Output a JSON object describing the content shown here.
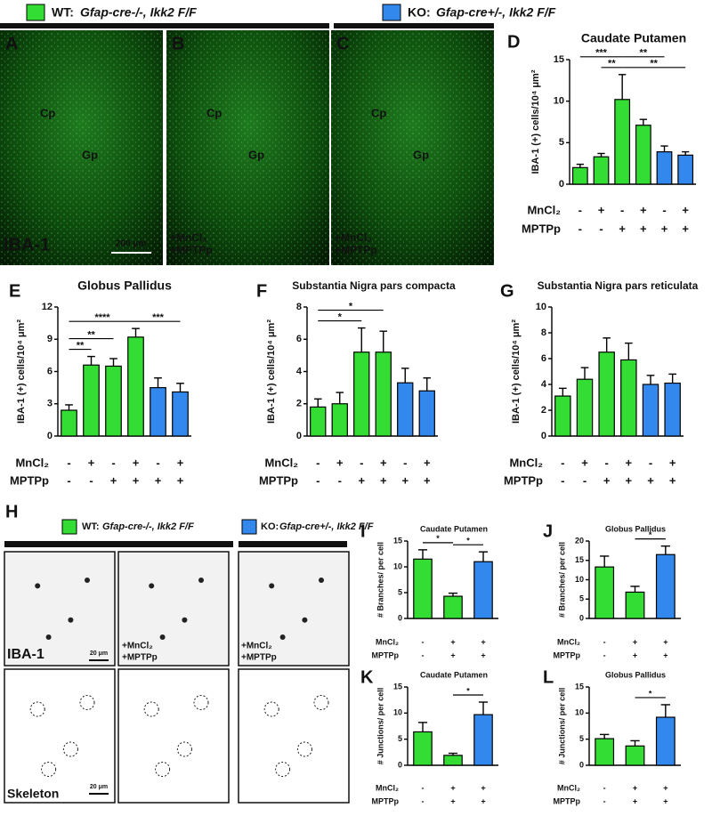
{
  "legend_top": {
    "wt": "WT:",
    "wt_genotype": "Gfap-cre-/-, Ikk2 F/F",
    "ko": "KO:",
    "ko_genotype": "Gfap-cre+/-, Ikk2 F/F"
  },
  "panels": {
    "A": {
      "letter": "A",
      "regions": [
        "Cp",
        "Gp"
      ],
      "stain": "IBA-1",
      "scale": "200 μm"
    },
    "B": {
      "letter": "B",
      "regions": [
        "Cp",
        "Gp"
      ],
      "treatment": [
        "+MnCl₂",
        "+MPTPp"
      ]
    },
    "C": {
      "letter": "C",
      "regions": [
        "Cp",
        "Gp"
      ],
      "treatment": [
        "+MnCl₂",
        "+MPTPp"
      ]
    },
    "H": {
      "letter": "H",
      "wt": "WT:",
      "wt_genotype": "Gfap-cre-/-, Ikk2 F/F",
      "ko": "KO:",
      "ko_genotype": "Gfap-cre+/-, Ikk2 F/F",
      "stain": "IBA-1",
      "scale": "20 μm",
      "treatment_wt": [
        "+MnCl₂",
        "+MPTPp"
      ],
      "treatment_ko": [
        "+MnCl₂",
        "+MPTPp"
      ],
      "skeleton": "Skeleton",
      "skeleton_scale": "20 μm"
    }
  },
  "chart_data": [
    {
      "type": "bar",
      "letter": "D",
      "title": "Caudate Putamen",
      "y_label": "IBA-1 (+) cells/10⁴ μm²",
      "values": [
        2.0,
        3.3,
        10.2,
        7.1,
        3.9,
        3.5
      ],
      "errors": [
        0.4,
        0.4,
        3.0,
        0.7,
        0.7,
        0.4
      ],
      "colors": [
        "#33dd33",
        "#33dd33",
        "#33dd33",
        "#33dd33",
        "#3388ee",
        "#3388ee"
      ],
      "ylim": [
        0,
        15
      ],
      "yticks": [
        0,
        5,
        10,
        15
      ],
      "treatment_labels": [
        "MnCl₂",
        "MPTPp"
      ],
      "treatments": [
        [
          "-",
          "+",
          "-",
          "+",
          "-",
          "+"
        ],
        [
          "-",
          "-",
          "+",
          "+",
          "+",
          "+"
        ]
      ],
      "significance": [
        {
          "between": [
            1,
            2
          ],
          "label": "**"
        },
        {
          "between": [
            2,
            5
          ],
          "label": "**"
        },
        {
          "between": [
            0,
            2
          ],
          "label": "***"
        },
        {
          "between": [
            2,
            4
          ],
          "label": "**"
        }
      ]
    },
    {
      "type": "bar",
      "letter": "E",
      "title": "Globus Pallidus",
      "y_label": "IBA-1 (+) cells/10⁴ μm²",
      "values": [
        2.4,
        6.6,
        6.5,
        9.2,
        4.5,
        4.1
      ],
      "errors": [
        0.5,
        0.8,
        0.7,
        0.8,
        0.9,
        0.8
      ],
      "colors": [
        "#33dd33",
        "#33dd33",
        "#33dd33",
        "#33dd33",
        "#3388ee",
        "#3388ee"
      ],
      "ylim": [
        0,
        12
      ],
      "yticks": [
        0,
        3,
        6,
        9,
        12
      ],
      "treatment_labels": [
        "MnCl₂",
        "MPTPp"
      ],
      "treatments": [
        [
          "-",
          "+",
          "-",
          "+",
          "-",
          "+"
        ],
        [
          "-",
          "-",
          "+",
          "+",
          "+",
          "+"
        ]
      ],
      "significance": [
        {
          "between": [
            0,
            1
          ],
          "label": "**"
        },
        {
          "between": [
            0,
            2
          ],
          "label": "**"
        },
        {
          "between": [
            3,
            5
          ],
          "label": "***"
        },
        {
          "between": [
            0,
            3
          ],
          "label": "****"
        }
      ]
    },
    {
      "type": "bar",
      "letter": "F",
      "title": "Substantia Nigra pars compacta",
      "y_label": "IBA-1 (+) cells/10⁴ μm²",
      "values": [
        1.8,
        2.0,
        5.2,
        5.2,
        3.3,
        2.8
      ],
      "errors": [
        0.5,
        0.7,
        1.5,
        1.3,
        0.9,
        0.8
      ],
      "colors": [
        "#33dd33",
        "#33dd33",
        "#33dd33",
        "#33dd33",
        "#3388ee",
        "#3388ee"
      ],
      "ylim": [
        0,
        8
      ],
      "yticks": [
        0,
        2,
        4,
        6,
        8
      ],
      "treatment_labels": [
        "MnCl₂",
        "MPTPp"
      ],
      "treatments": [
        [
          "-",
          "+",
          "-",
          "+",
          "-",
          "+"
        ],
        [
          "-",
          "-",
          "+",
          "+",
          "+",
          "+"
        ]
      ],
      "significance": [
        {
          "between": [
            0,
            2
          ],
          "label": "*"
        },
        {
          "between": [
            0,
            3
          ],
          "label": "*"
        }
      ]
    },
    {
      "type": "bar",
      "letter": "G",
      "title": "Substantia Nigra pars reticulata",
      "y_label": "IBA-1 (+) cells/10⁴ μm²",
      "values": [
        3.1,
        4.4,
        6.5,
        5.9,
        4.0,
        4.1
      ],
      "errors": [
        0.6,
        0.9,
        1.1,
        1.3,
        0.7,
        0.7
      ],
      "colors": [
        "#33dd33",
        "#33dd33",
        "#33dd33",
        "#33dd33",
        "#3388ee",
        "#3388ee"
      ],
      "ylim": [
        0,
        10
      ],
      "yticks": [
        0,
        2,
        4,
        6,
        8,
        10
      ],
      "treatment_labels": [
        "MnCl₂",
        "MPTPp"
      ],
      "treatments": [
        [
          "-",
          "+",
          "-",
          "+",
          "-",
          "+"
        ],
        [
          "-",
          "-",
          "+",
          "+",
          "+",
          "+"
        ]
      ],
      "significance": []
    },
    {
      "type": "bar",
      "letter": "I",
      "title": "Caudate Putamen",
      "y_label": "# Branches/ per cell",
      "values": [
        11.5,
        4.3,
        11.0
      ],
      "errors": [
        1.8,
        0.6,
        1.9
      ],
      "colors": [
        "#33dd33",
        "#33dd33",
        "#3388ee"
      ],
      "ylim": [
        0,
        15
      ],
      "yticks": [
        0,
        5,
        10,
        15
      ],
      "treatment_labels": [
        "MnCl₂",
        "MPTPp"
      ],
      "treatments": [
        [
          "-",
          "+",
          "+"
        ],
        [
          "-",
          "+",
          "+"
        ]
      ],
      "significance": [
        {
          "between": [
            0,
            1
          ],
          "label": "*"
        },
        {
          "between": [
            1,
            2
          ],
          "label": "*"
        }
      ]
    },
    {
      "type": "bar",
      "letter": "J",
      "title": "Globus Pallidus",
      "y_label": "# Branches/ per cell",
      "values": [
        13.3,
        6.8,
        16.5
      ],
      "errors": [
        2.8,
        1.5,
        2.2
      ],
      "colors": [
        "#33dd33",
        "#33dd33",
        "#3388ee"
      ],
      "ylim": [
        0,
        20
      ],
      "yticks": [
        0,
        5,
        10,
        15,
        20
      ],
      "treatment_labels": [
        "MnCl₂",
        "MPTPp"
      ],
      "treatments": [
        [
          "-",
          "+",
          "+"
        ],
        [
          "-",
          "+",
          "+"
        ]
      ],
      "significance": [
        {
          "between": [
            1,
            2
          ],
          "label": "*"
        }
      ]
    },
    {
      "type": "bar",
      "letter": "K",
      "title": "Caudate Putamen",
      "y_label": "# Junctions/ per cell",
      "values": [
        6.4,
        1.9,
        9.7
      ],
      "errors": [
        1.8,
        0.4,
        2.4
      ],
      "colors": [
        "#33dd33",
        "#33dd33",
        "#3388ee"
      ],
      "ylim": [
        0,
        15
      ],
      "yticks": [
        0,
        5,
        10,
        15
      ],
      "treatment_labels": [
        "MnCl₂",
        "MPTPp"
      ],
      "treatments": [
        [
          "-",
          "+",
          "+"
        ],
        [
          "-",
          "+",
          "+"
        ]
      ],
      "significance": [
        {
          "between": [
            1,
            2
          ],
          "label": "*"
        }
      ]
    },
    {
      "type": "bar",
      "letter": "L",
      "title": "Globus Pallidus",
      "y_label": "# Junctions/ per cell",
      "values": [
        5.1,
        3.7,
        9.2
      ],
      "errors": [
        0.8,
        1.0,
        2.4
      ],
      "colors": [
        "#33dd33",
        "#33dd33",
        "#3388ee"
      ],
      "ylim": [
        0,
        15
      ],
      "yticks": [
        0,
        5,
        10,
        15
      ],
      "treatment_labels": [
        "MnCl₂",
        "MPTPp"
      ],
      "treatments": [
        [
          "-",
          "+",
          "+"
        ],
        [
          "-",
          "+",
          "+"
        ]
      ],
      "significance": [
        {
          "between": [
            1,
            2
          ],
          "label": "*"
        }
      ]
    }
  ]
}
